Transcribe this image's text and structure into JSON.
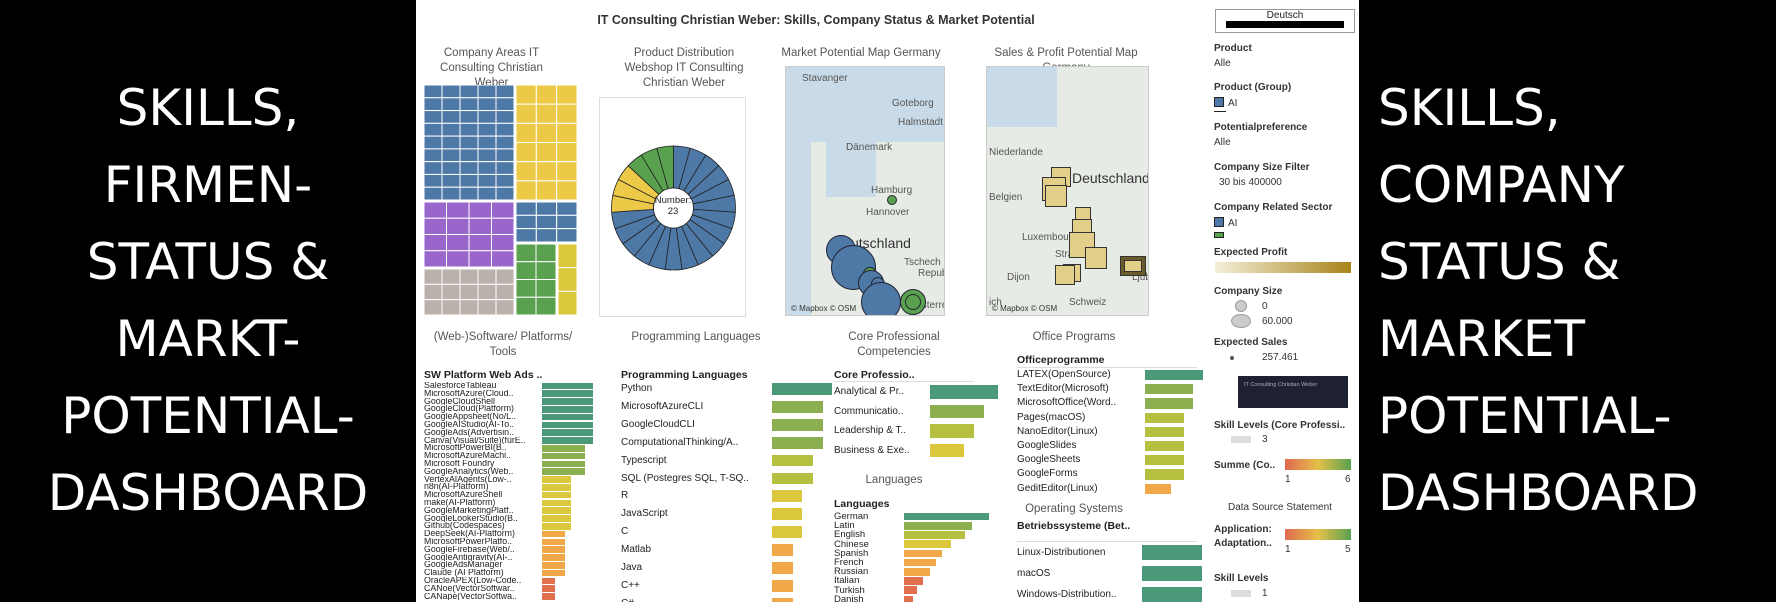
{
  "left_text": "SKILLS,\nFIRMEN-\nSTATUS &\nMARKT-\nPOTENTIAL-\nDASHBOARD",
  "right_text": "SKILLS,\nCOMPANY\nSTATUS &\nMARKET\nPOTENTIAL-\nDASHBOARD",
  "dashboard_title": "IT Consulting Christian Weber: Skills, Company Status & Market Potential",
  "panels": {
    "company_areas": "Company Areas IT Consulting Christian Weber",
    "product_distribution": "Product Distribution Webshop IT Consulting Christian Weber",
    "market_map": "Market Potential Map Germany",
    "sales_map": "Sales & Profit Potential Map Germany",
    "software": "(Web-)Software/ Platforms/ Tools",
    "programming": "Programming Languages",
    "core": "Core Professional Competencies",
    "office": "Office Programs",
    "languages": "Languages",
    "os": "Operating Systems"
  },
  "pie_label": "Number:",
  "pie_value": "23",
  "map_attr": "© Mapbox © OSM",
  "market_map_labels": [
    "Stavanger",
    "Goteborg",
    "Halmstadt",
    "Dänemark",
    "Hamburg",
    "Hannover",
    "utschland",
    "Tschech",
    "Republ",
    "Österreich"
  ],
  "sales_map_labels": [
    "Niederlande",
    "Belgien",
    "Deutschland",
    "Luxembourg",
    "Straß",
    "Dijon",
    "Schweiz",
    "Ljub",
    "ich"
  ],
  "software_header": "SW Platform Web Ads ..",
  "software_items": [
    {
      "label": "SalesforceTableau",
      "v": 0.98
    },
    {
      "label": "MicrosoftAzure(Cloud..",
      "v": 0.98
    },
    {
      "label": "GoogleCloudShell",
      "v": 0.98
    },
    {
      "label": "GoogleCloud(Platform)",
      "v": 0.98
    },
    {
      "label": "GoogleAppsheet(No/L..",
      "v": 0.98
    },
    {
      "label": "GoogleAIStudio(AI-To..",
      "v": 0.98
    },
    {
      "label": "GoogleAds(Advertisin..",
      "v": 0.98
    },
    {
      "label": "Canva(Visual/Suite)(fürE..",
      "v": 0.98
    },
    {
      "label": "MicrosoftPowerBI(B..",
      "v": 0.82
    },
    {
      "label": "MicrosoftAzureMachi..",
      "v": 0.82
    },
    {
      "label": "Microsoft Foundry",
      "v": 0.82
    },
    {
      "label": "GoogleAnalytics(Web..",
      "v": 0.82
    },
    {
      "label": "VertexAIAgents(Low-..",
      "v": 0.55
    },
    {
      "label": "n8n(AI-Platform)",
      "v": 0.55
    },
    {
      "label": "MicrosoftAzureShell",
      "v": 0.55
    },
    {
      "label": "make(AI-Platform)",
      "v": 0.55
    },
    {
      "label": "GoogleMarketingPlatf..",
      "v": 0.55
    },
    {
      "label": "GoogleLookerStudio(B..",
      "v": 0.55
    },
    {
      "label": "Github(Codespaces)",
      "v": 0.55
    },
    {
      "label": "DeepSeek(AI-Platform)",
      "v": 0.45
    },
    {
      "label": "MicrosoftPowerPlatfo..",
      "v": 0.45
    },
    {
      "label": "GoogleFirebase(Web/..",
      "v": 0.45
    },
    {
      "label": "GoogleAntigravity(AI-..",
      "v": 0.45
    },
    {
      "label": "GoogleAdsManager",
      "v": 0.45
    },
    {
      "label": "Claude (AI Platform)",
      "v": 0.45
    },
    {
      "label": "OracleAPEX(Low-Code..",
      "v": 0.25
    },
    {
      "label": "CANoe(VectorSoftwar..",
      "v": 0.25
    },
    {
      "label": "CANape(VectorSoftwa..",
      "v": 0.25
    }
  ],
  "programming_header": "Programming Languages",
  "programming_items": [
    {
      "label": "Python",
      "v": 1.0
    },
    {
      "label": "MicrosoftAzureCLI",
      "v": 0.85
    },
    {
      "label": "GoogleCloudCLI",
      "v": 0.85
    },
    {
      "label": "ComputationalThinking/A..",
      "v": 0.85
    },
    {
      "label": "Typescript",
      "v": 0.68
    },
    {
      "label": "SQL (Postegres SQL, T-SQ..",
      "v": 0.68
    },
    {
      "label": "R",
      "v": 0.5
    },
    {
      "label": "JavaScript",
      "v": 0.5
    },
    {
      "label": "C",
      "v": 0.5
    },
    {
      "label": "Matlab",
      "v": 0.35
    },
    {
      "label": "Java",
      "v": 0.35
    },
    {
      "label": "C++",
      "v": 0.35
    },
    {
      "label": "C#",
      "v": 0.35
    }
  ],
  "core_header": "Core Professio..",
  "core_items": [
    {
      "label": "Analytical & Pr..",
      "v": 1.0
    },
    {
      "label": "Communicatio..",
      "v": 0.8
    },
    {
      "label": "Leadership & T..",
      "v": 0.65
    },
    {
      "label": "Business & Exe..",
      "v": 0.5
    }
  ],
  "office_header": "Officeprogramme",
  "office_items": [
    {
      "label": "LATEX(OpenSource)",
      "v": 1.0
    },
    {
      "label": "TextEditor(Microsoft)",
      "v": 0.82
    },
    {
      "label": "MicrosoftOffice(Word..",
      "v": 0.82
    },
    {
      "label": "Pages(macOS)",
      "v": 0.68
    },
    {
      "label": "NanoEditor(Linux)",
      "v": 0.68
    },
    {
      "label": "GoogleSlides",
      "v": 0.68
    },
    {
      "label": "GoogleSheets",
      "v": 0.68
    },
    {
      "label": "GoogleForms",
      "v": 0.68
    },
    {
      "label": "GeditEditor(Linux)",
      "v": 0.45
    }
  ],
  "lang_header": "Languages",
  "lang_items": [
    {
      "label": "German",
      "v": 1.0
    },
    {
      "label": "Latin",
      "v": 0.8
    },
    {
      "label": "English",
      "v": 0.72
    },
    {
      "label": "Chinese",
      "v": 0.55
    },
    {
      "label": "Spanish",
      "v": 0.45
    },
    {
      "label": "French",
      "v": 0.38
    },
    {
      "label": "Russian",
      "v": 0.3
    },
    {
      "label": "Italian",
      "v": 0.22
    },
    {
      "label": "Turkish",
      "v": 0.15
    },
    {
      "label": "Danish",
      "v": 0.1
    }
  ],
  "os_header": "Betriebssysteme (Bet..",
  "os_items": [
    {
      "label": "Linux-Distributionen",
      "v": 1.0
    },
    {
      "label": "macOS",
      "v": 1.0
    },
    {
      "label": "Windows-Distribution..",
      "v": 1.0
    }
  ],
  "filters": {
    "language": "Deutsch",
    "product_label": "Product",
    "product_value": "Alle",
    "product_group_label": "Product (Group)",
    "product_group_value": "AI",
    "potential_label": "Potentialpreference",
    "potential_value": "Alle",
    "size_filter_label": "Company Size Filter",
    "size_filter_value": "30 bis 400000",
    "sector_label": "Company Related Sector",
    "sector_value": "AI",
    "profit_label": "Expected Profit",
    "size_label": "Company Size",
    "size_min": "0",
    "size_max": "60.000",
    "sales_label": "Expected Sales",
    "sales_value": "257.461",
    "thumb_text": "IT Consulting Christian Weber",
    "skill_core_label": "Skill Levels (Core Professi..",
    "skill_core_value": "3",
    "summe_label": "Summe (Co..",
    "summe_min": "1",
    "summe_max": "6",
    "source_label": "Data Source Statement",
    "app_label1": "Application:",
    "app_label2": "Adaptation..",
    "app_min": "1",
    "app_max": "5",
    "skill_levels_label": "Skill Levels",
    "skill_levels_value": "1"
  },
  "colors": {
    "blue": "#4e79a7",
    "yellow": "#edc948",
    "purple": "#9966cc",
    "grey": "#bab0ac",
    "green": "#59a14f",
    "teal": "#4a9a7a",
    "lightgreen": "#8cb050",
    "ygreen": "#b5c040",
    "gold": "#dcc83c",
    "orange": "#f0a848",
    "redorange": "#e07050"
  }
}
